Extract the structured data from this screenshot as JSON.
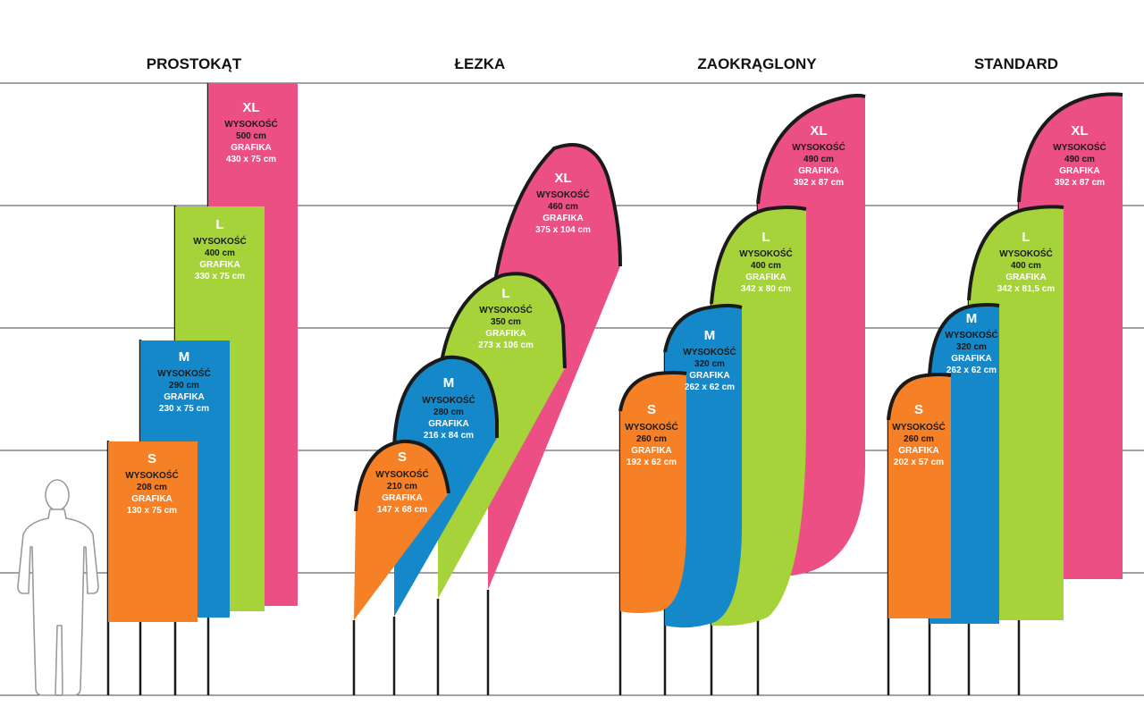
{
  "labels": {
    "height": "WYSOKOŚĆ",
    "graphic": "GRAFIKA"
  },
  "colors": {
    "S": "#f58025",
    "M": "#1588c9",
    "L": "#a6d23a",
    "XL": "#ec4f83",
    "pole": "#1a1a1a",
    "gridline": "#444444"
  },
  "groups": [
    {
      "title": "PROSTOKĄT",
      "shape": "rectangle",
      "flags": [
        {
          "size": "S",
          "height": "208 cm",
          "graphic": "130 x 75 cm"
        },
        {
          "size": "M",
          "height": "290 cm",
          "graphic": "230 x 75 cm"
        },
        {
          "size": "L",
          "height": "400 cm",
          "graphic": "330 x 75 cm"
        },
        {
          "size": "XL",
          "height": "500 cm",
          "graphic": "430 x 75 cm"
        }
      ]
    },
    {
      "title": "ŁEZKA",
      "shape": "teardrop",
      "flags": [
        {
          "size": "S",
          "height": "210 cm",
          "graphic": "147 x 68 cm"
        },
        {
          "size": "M",
          "height": "280 cm",
          "graphic": "216 x 84 cm"
        },
        {
          "size": "L",
          "height": "350 cm",
          "graphic": "273 x 106 cm"
        },
        {
          "size": "XL",
          "height": "460 cm",
          "graphic": "375 x 104 cm"
        }
      ]
    },
    {
      "title": "ZAOKRĄGLONY",
      "shape": "rounded",
      "flags": [
        {
          "size": "S",
          "height": "260 cm",
          "graphic": "192 x 62 cm"
        },
        {
          "size": "M",
          "height": "320 cm",
          "graphic": "262 x 62 cm"
        },
        {
          "size": "L",
          "height": "400 cm",
          "graphic": "342 x 80 cm"
        },
        {
          "size": "XL",
          "height": "490 cm",
          "graphic": "392 x 87 cm"
        }
      ]
    },
    {
      "title": "STANDARD",
      "shape": "standard",
      "flags": [
        {
          "size": "S",
          "height": "260 cm",
          "graphic": "202 x 57 cm"
        },
        {
          "size": "M",
          "height": "320 cm",
          "graphic": "262 x 62 cm"
        },
        {
          "size": "L",
          "height": "400 cm",
          "graphic": "342 x 81,5 cm"
        },
        {
          "size": "XL",
          "height": "490 cm",
          "graphic": "392 x 87 cm"
        }
      ]
    }
  ]
}
